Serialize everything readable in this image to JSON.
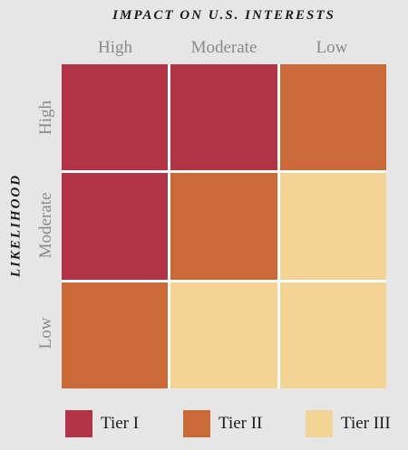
{
  "title": "IMPACT ON U.S. INTERESTS",
  "y_title": "LIKELIHOOD",
  "columns": [
    "High",
    "Moderate",
    "Low"
  ],
  "rows": [
    "High",
    "Moderate",
    "Low"
  ],
  "tiers": [
    {
      "label": "Tier I",
      "color": "#b43447"
    },
    {
      "label": "Tier II",
      "color": "#c96a38"
    },
    {
      "label": "Tier III",
      "color": "#f4d494"
    }
  ],
  "matrix": [
    [
      1,
      1,
      2
    ],
    [
      1,
      2,
      3
    ],
    [
      2,
      3,
      3
    ]
  ]
}
